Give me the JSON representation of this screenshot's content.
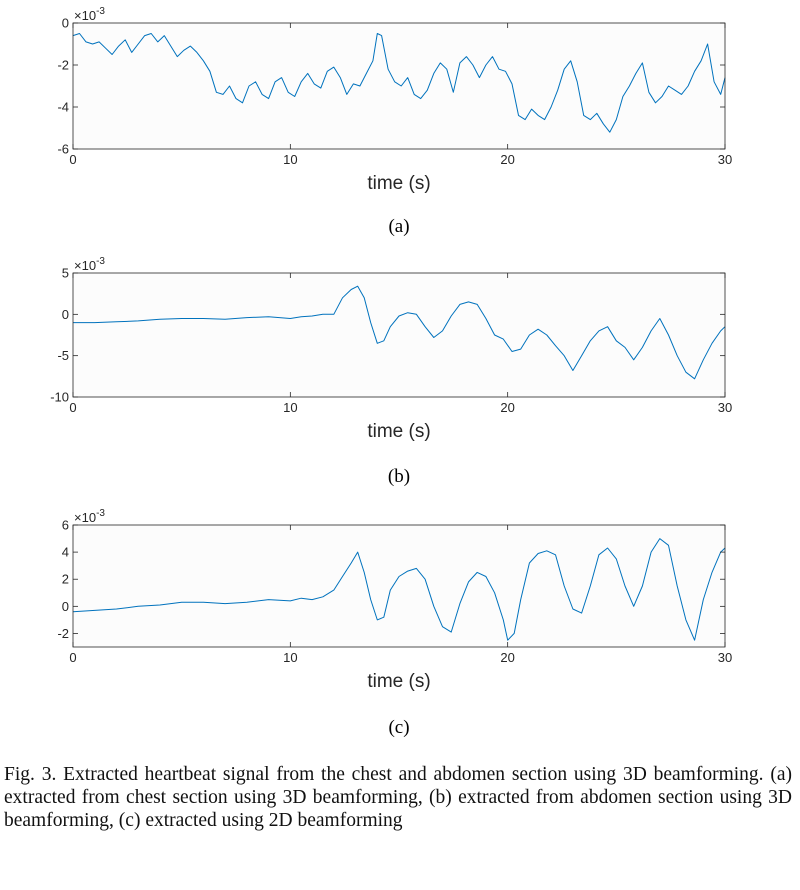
{
  "caption": "Fig. 3.  Extracted heartbeat signal from the chest and abdomen section using 3D beamforming. (a) extracted from chest section using 3D beamforming, (b) extracted from abdomen section using 3D beamforming, (c) extracted using 2D beamforming",
  "colors": {
    "line": "#0072BD",
    "axis": "#262626",
    "plot_bg": "#fcfcfc"
  },
  "chart_data": [
    {
      "type": "line",
      "sublabel": "(a)",
      "xlabel": "time (s)",
      "ylabel": "",
      "y_exponent_label": "×10",
      "y_exponent": "-3",
      "xlim": [
        0,
        30
      ],
      "ylim": [
        -6,
        0
      ],
      "xticks": [
        0,
        10,
        20,
        30
      ],
      "yticks": [
        0,
        -2,
        -4,
        -6
      ],
      "series": [
        {
          "x": [
            0,
            0.3,
            0.6,
            0.9,
            1.2,
            1.5,
            1.8,
            2.1,
            2.4,
            2.7,
            3.0,
            3.3,
            3.6,
            3.9,
            4.2,
            4.5,
            4.8,
            5.1,
            5.4,
            5.7,
            6.0,
            6.3,
            6.6,
            6.9,
            7.2,
            7.5,
            7.8,
            8.1,
            8.4,
            8.7,
            9.0,
            9.3,
            9.6,
            9.9,
            10.2,
            10.5,
            10.8,
            11.1,
            11.4,
            11.7,
            12.0,
            12.3,
            12.6,
            12.9,
            13.2,
            13.5,
            13.8,
            14.0,
            14.2,
            14.5,
            14.8,
            15.1,
            15.4,
            15.7,
            16.0,
            16.3,
            16.6,
            16.9,
            17.2,
            17.5,
            17.8,
            18.1,
            18.4,
            18.7,
            19.0,
            19.3,
            19.6,
            19.9,
            20.2,
            20.5,
            20.8,
            21.1,
            21.4,
            21.7,
            22.0,
            22.3,
            22.6,
            22.9,
            23.2,
            23.5,
            23.8,
            24.1,
            24.4,
            24.7,
            25.0,
            25.3,
            25.6,
            25.9,
            26.2,
            26.5,
            26.8,
            27.1,
            27.4,
            27.7,
            28.0,
            28.3,
            28.6,
            28.9,
            29.2,
            29.5,
            29.8,
            30.0
          ],
          "y": [
            -0.6,
            -0.5,
            -0.9,
            -1.0,
            -0.9,
            -1.2,
            -1.5,
            -1.1,
            -0.8,
            -1.4,
            -1.0,
            -0.6,
            -0.5,
            -0.9,
            -0.6,
            -1.1,
            -1.6,
            -1.3,
            -1.1,
            -1.4,
            -1.8,
            -2.3,
            -3.3,
            -3.4,
            -3.0,
            -3.6,
            -3.8,
            -3.0,
            -2.8,
            -3.4,
            -3.6,
            -2.8,
            -2.6,
            -3.3,
            -3.5,
            -2.8,
            -2.4,
            -2.9,
            -3.1,
            -2.3,
            -2.1,
            -2.6,
            -3.4,
            -2.9,
            -3.0,
            -2.4,
            -1.8,
            -0.5,
            -0.6,
            -2.2,
            -2.8,
            -3.0,
            -2.6,
            -3.4,
            -3.6,
            -3.2,
            -2.4,
            -1.9,
            -2.2,
            -3.3,
            -1.9,
            -1.6,
            -2.0,
            -2.6,
            -2.0,
            -1.6,
            -2.2,
            -2.3,
            -2.9,
            -4.4,
            -4.6,
            -4.1,
            -4.4,
            -4.6,
            -4.0,
            -3.2,
            -2.2,
            -1.8,
            -2.8,
            -4.4,
            -4.6,
            -4.3,
            -4.8,
            -5.2,
            -4.6,
            -3.5,
            -3.0,
            -2.4,
            -1.9,
            -3.3,
            -3.8,
            -3.5,
            -3.0,
            -3.2,
            -3.4,
            -3.0,
            -2.3,
            -1.8,
            -1.0,
            -2.8,
            -3.4,
            -2.6
          ]
        }
      ]
    },
    {
      "type": "line",
      "sublabel": "(b)",
      "xlabel": "time (s)",
      "ylabel": "",
      "y_exponent_label": "×10",
      "y_exponent": "-3",
      "xlim": [
        0,
        30
      ],
      "ylim": [
        -10,
        5
      ],
      "xticks": [
        0,
        10,
        20,
        30
      ],
      "yticks": [
        5,
        0,
        -5,
        -10
      ],
      "series": [
        {
          "x": [
            0,
            1,
            2,
            3,
            4,
            5,
            6,
            7,
            8,
            9,
            10,
            10.5,
            11,
            11.5,
            12.0,
            12.4,
            12.8,
            13.1,
            13.4,
            13.7,
            14.0,
            14.3,
            14.6,
            15.0,
            15.4,
            15.8,
            16.2,
            16.6,
            17.0,
            17.4,
            17.8,
            18.2,
            18.6,
            19.0,
            19.4,
            19.8,
            20.2,
            20.6,
            21.0,
            21.4,
            21.8,
            22.2,
            22.6,
            23.0,
            23.4,
            23.8,
            24.2,
            24.6,
            25.0,
            25.4,
            25.8,
            26.2,
            26.6,
            27.0,
            27.4,
            27.8,
            28.2,
            28.6,
            29.0,
            29.4,
            29.8,
            30.0
          ],
          "y": [
            -1.0,
            -1.0,
            -0.9,
            -0.8,
            -0.6,
            -0.5,
            -0.5,
            -0.6,
            -0.4,
            -0.3,
            -0.5,
            -0.3,
            -0.2,
            0.0,
            0.0,
            2.0,
            3.0,
            3.4,
            2.0,
            -1.0,
            -3.5,
            -3.2,
            -1.5,
            -0.2,
            0.2,
            0.0,
            -1.5,
            -2.8,
            -2.0,
            -0.2,
            1.2,
            1.5,
            1.2,
            -0.5,
            -2.5,
            -3.0,
            -4.5,
            -4.2,
            -2.5,
            -1.8,
            -2.5,
            -3.8,
            -5.0,
            -6.8,
            -5.0,
            -3.2,
            -2.0,
            -1.5,
            -3.2,
            -4.0,
            -5.5,
            -4.0,
            -2.0,
            -0.5,
            -2.5,
            -5.0,
            -7.0,
            -7.8,
            -5.5,
            -3.5,
            -2.0,
            -1.5
          ]
        }
      ]
    },
    {
      "type": "line",
      "sublabel": "(c)",
      "xlabel": "time (s)",
      "ylabel": "",
      "y_exponent_label": "×10",
      "y_exponent": "-3",
      "xlim": [
        0,
        30
      ],
      "ylim": [
        -3,
        6
      ],
      "xticks": [
        0,
        10,
        20,
        30
      ],
      "yticks": [
        6,
        4,
        2,
        0,
        -2
      ],
      "series": [
        {
          "x": [
            0,
            1,
            2,
            3,
            4,
            5,
            6,
            7,
            8,
            9,
            10,
            10.5,
            11,
            11.5,
            12.0,
            12.4,
            12.8,
            13.1,
            13.4,
            13.7,
            14.0,
            14.3,
            14.6,
            15.0,
            15.4,
            15.8,
            16.2,
            16.6,
            17.0,
            17.4,
            17.8,
            18.2,
            18.6,
            19.0,
            19.4,
            19.8,
            20.0,
            20.3,
            20.6,
            21.0,
            21.4,
            21.8,
            22.2,
            22.6,
            23.0,
            23.4,
            23.8,
            24.2,
            24.6,
            25.0,
            25.4,
            25.8,
            26.2,
            26.6,
            27.0,
            27.4,
            27.8,
            28.2,
            28.6,
            29.0,
            29.4,
            29.8,
            30.0
          ],
          "y": [
            -0.4,
            -0.3,
            -0.2,
            0.0,
            0.1,
            0.3,
            0.3,
            0.2,
            0.3,
            0.5,
            0.4,
            0.6,
            0.5,
            0.7,
            1.2,
            2.2,
            3.2,
            4.0,
            2.5,
            0.5,
            -1.0,
            -0.8,
            1.2,
            2.2,
            2.6,
            2.8,
            2.0,
            0.0,
            -1.5,
            -1.9,
            0.2,
            1.8,
            2.5,
            2.2,
            1.0,
            -1.0,
            -2.5,
            -2.0,
            0.5,
            3.2,
            3.9,
            4.1,
            3.8,
            1.5,
            -0.2,
            -0.5,
            1.5,
            3.8,
            4.3,
            3.5,
            1.5,
            0.0,
            1.5,
            4.0,
            5.0,
            4.5,
            1.5,
            -1.0,
            -2.5,
            0.5,
            2.5,
            4.0,
            4.3
          ]
        }
      ]
    }
  ]
}
